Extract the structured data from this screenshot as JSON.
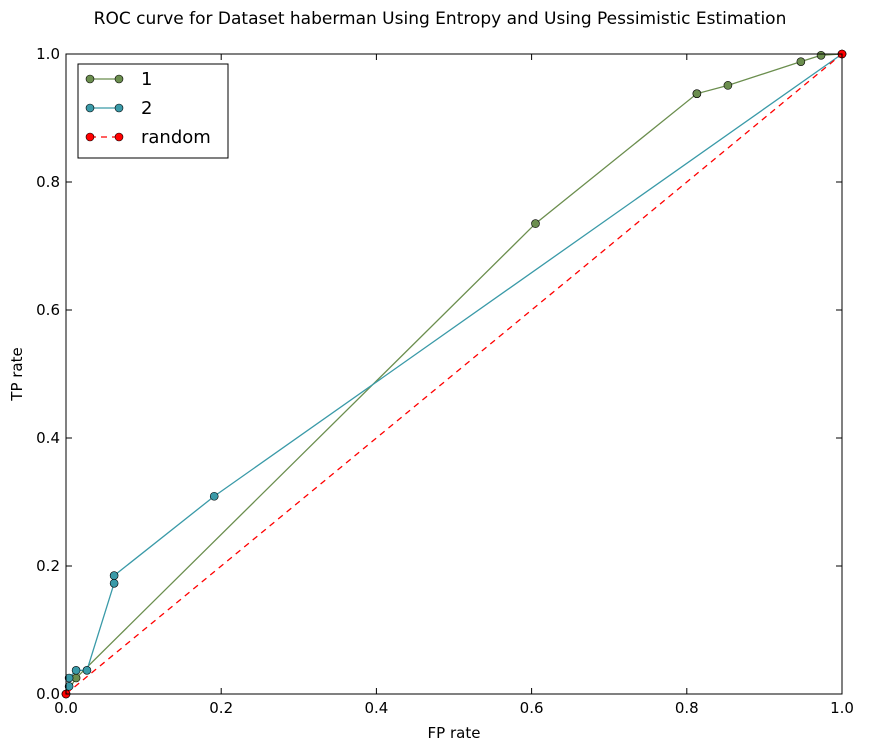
{
  "chart_data": {
    "type": "line",
    "title": "ROC curve for Dataset haberman Using Entropy and Using Pessimistic Estimation",
    "xlabel": "FP rate",
    "ylabel": "TP rate",
    "xlim": [
      0.0,
      1.0
    ],
    "ylim": [
      0.0,
      1.0
    ],
    "xticks": [
      "0.0",
      "0.2",
      "0.4",
      "0.6",
      "0.8",
      "1.0"
    ],
    "yticks": [
      "0.0",
      "0.2",
      "0.4",
      "0.6",
      "0.8",
      "1.0"
    ],
    "grid": false,
    "legend_position": "top-left",
    "series": [
      {
        "name": "1",
        "color": "#6b8e4e",
        "linestyle": "solid",
        "marker": "circle",
        "x": [
          0.0,
          0.013,
          0.605,
          0.813,
          0.813,
          0.853,
          0.947,
          0.973,
          1.0
        ],
        "y": [
          0.0,
          0.025,
          0.735,
          0.938,
          0.938,
          0.951,
          0.988,
          0.998,
          1.0
        ]
      },
      {
        "name": "2",
        "color": "#3a9aa8",
        "linestyle": "solid",
        "marker": "circle",
        "x": [
          0.0,
          0.004,
          0.004,
          0.013,
          0.027,
          0.062,
          0.062,
          0.191,
          1.0
        ],
        "y": [
          0.0,
          0.012,
          0.025,
          0.037,
          0.037,
          0.173,
          0.185,
          0.309,
          1.0
        ]
      },
      {
        "name": "random",
        "color": "#ff0000",
        "linestyle": "dashed",
        "marker": "circle",
        "x": [
          0.0,
          1.0
        ],
        "y": [
          0.0,
          1.0
        ]
      }
    ]
  }
}
